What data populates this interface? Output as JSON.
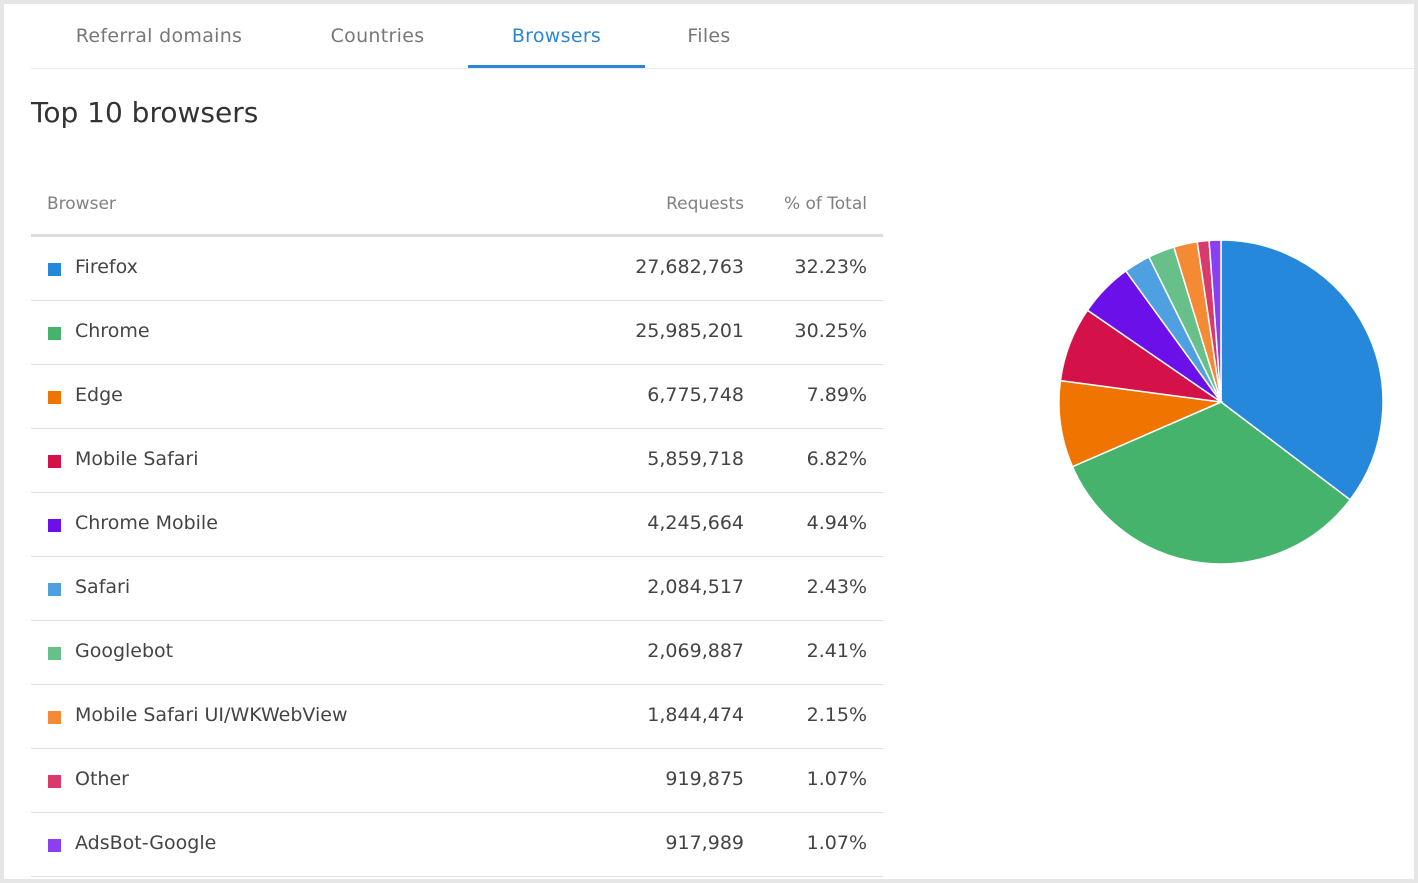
{
  "tabs": [
    {
      "label": "Referral domains",
      "active": false
    },
    {
      "label": "Countries",
      "active": false
    },
    {
      "label": "Browsers",
      "active": true
    },
    {
      "label": "Files",
      "active": false
    }
  ],
  "title": "Top 10 browsers",
  "table": {
    "headers": {
      "browser": "Browser",
      "requests": "Requests",
      "pct": "% of Total"
    },
    "rows": [
      {
        "name": "Firefox",
        "requests": "27,682,763",
        "pct": "32.23%",
        "color": "#2588db"
      },
      {
        "name": "Chrome",
        "requests": "25,985,201",
        "pct": "30.25%",
        "color": "#45b36b"
      },
      {
        "name": "Edge",
        "requests": "6,775,748",
        "pct": "7.89%",
        "color": "#f07400"
      },
      {
        "name": "Mobile Safari",
        "requests": "5,859,718",
        "pct": "6.82%",
        "color": "#d41249"
      },
      {
        "name": "Chrome Mobile",
        "requests": "4,245,664",
        "pct": "4.94%",
        "color": "#6c10ea"
      },
      {
        "name": "Safari",
        "requests": "2,084,517",
        "pct": "2.43%",
        "color": "#4fa0e1"
      },
      {
        "name": "Googlebot",
        "requests": "2,069,887",
        "pct": "2.41%",
        "color": "#67bf89"
      },
      {
        "name": "Mobile Safari UI/WKWebView",
        "requests": "1,844,474",
        "pct": "2.15%",
        "color": "#f48a33"
      },
      {
        "name": "Other",
        "requests": "919,875",
        "pct": "1.07%",
        "color": "#d93a6b"
      },
      {
        "name": "AdsBot-Google",
        "requests": "917,989",
        "pct": "1.07%",
        "color": "#8a3ff0"
      }
    ]
  },
  "chart_data": {
    "type": "pie",
    "title": "",
    "categories": [
      "Firefox",
      "Chrome",
      "Edge",
      "Mobile Safari",
      "Chrome Mobile",
      "Safari",
      "Googlebot",
      "Mobile Safari UI/WKWebView",
      "Other",
      "AdsBot-Google"
    ],
    "values": [
      27682763,
      25985201,
      6775748,
      5859718,
      4245664,
      2084517,
      2069887,
      1844474,
      919875,
      917989
    ],
    "colors": [
      "#2588db",
      "#45b36b",
      "#f07400",
      "#d41249",
      "#6c10ea",
      "#4fa0e1",
      "#67bf89",
      "#f48a33",
      "#d93a6b",
      "#8a3ff0"
    ]
  }
}
